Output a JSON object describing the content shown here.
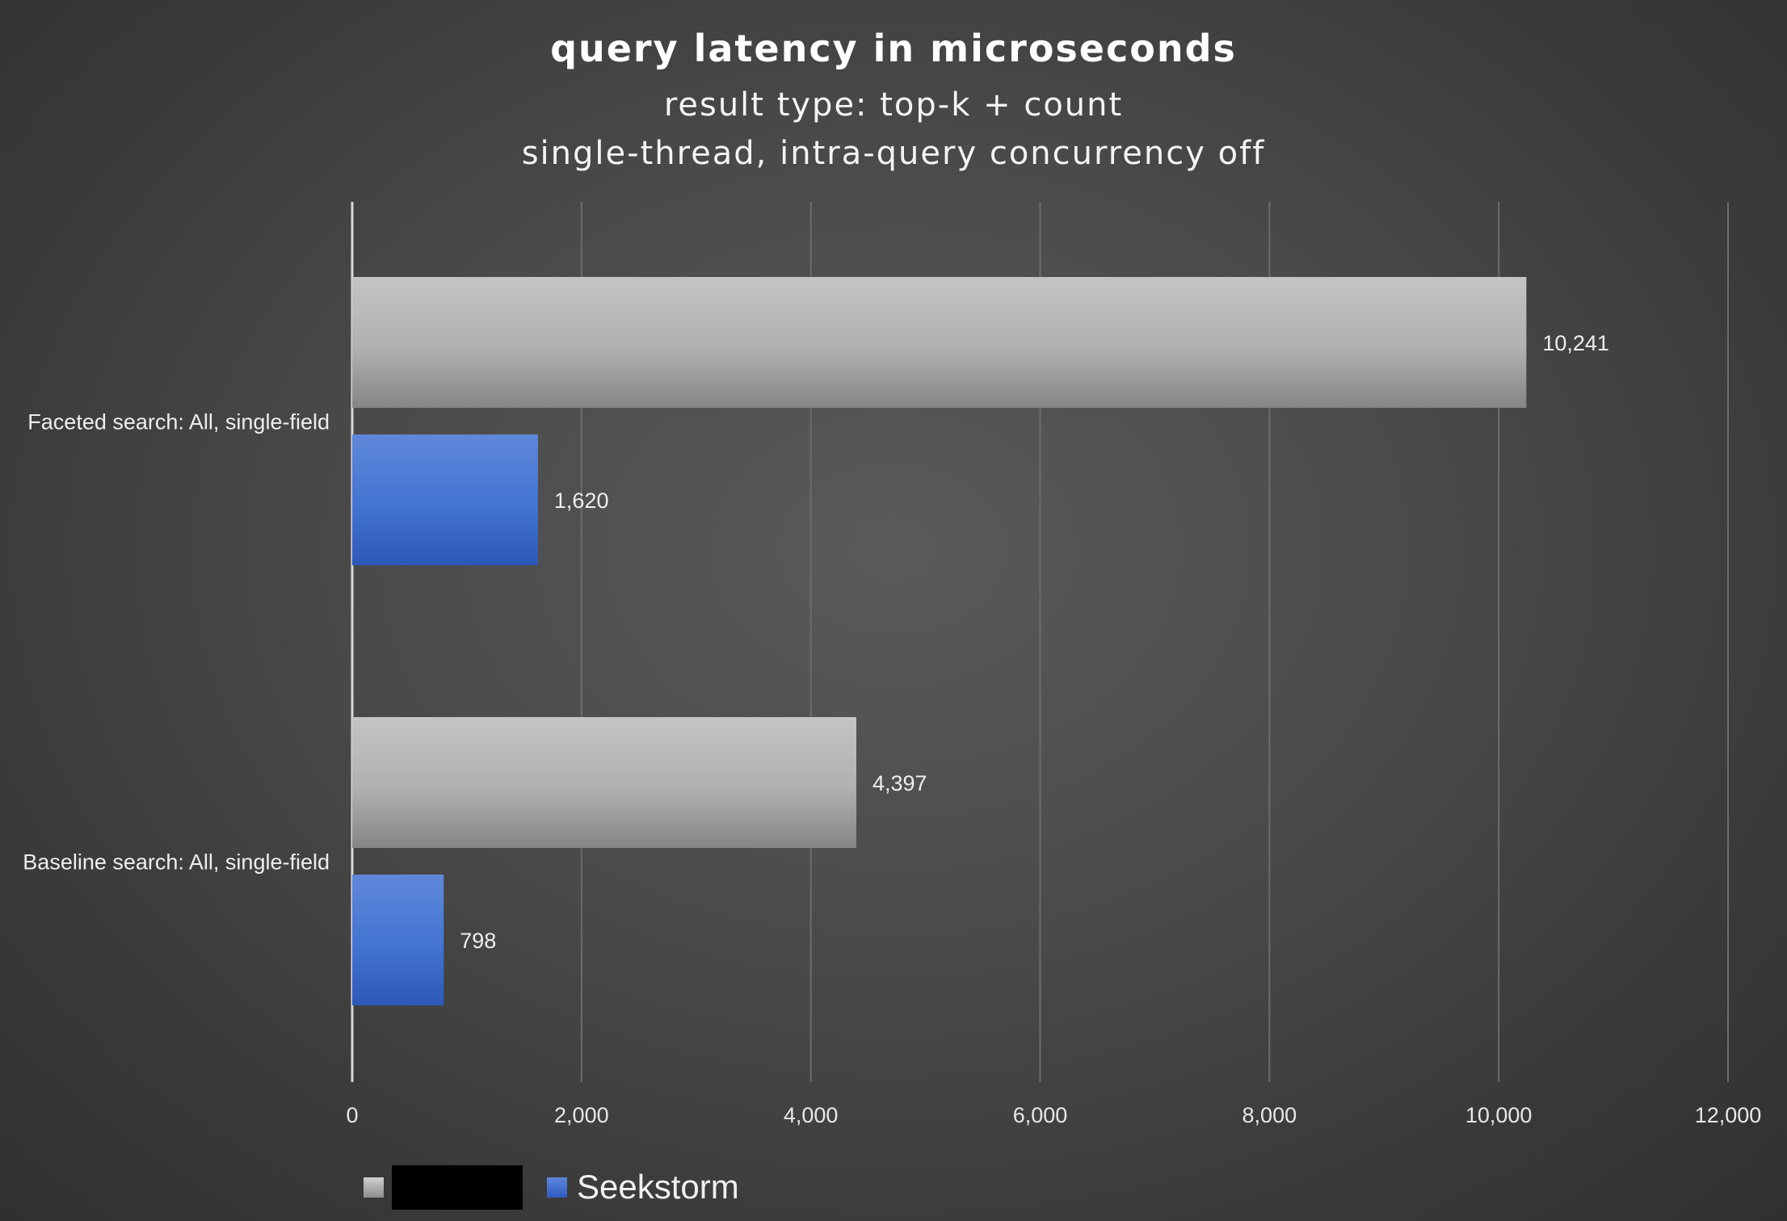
{
  "chart_data": {
    "type": "bar",
    "orientation": "horizontal",
    "title": "query latency in microseconds",
    "subtitle_lines": [
      "result type: top-k + count",
      "single-thread, intra-query concurrency off"
    ],
    "categories": [
      "Faceted search: All, single-field",
      "Baseline search: All, single-field"
    ],
    "series": [
      {
        "name": "",
        "color": "#b4b4b4",
        "values": [
          10241,
          4397
        ],
        "labels": [
          "10,241",
          "4,397"
        ],
        "redacted_legend": true
      },
      {
        "name": "Seekstorm",
        "color": "#3f6fd0",
        "values": [
          1620,
          798
        ],
        "labels": [
          "1,620",
          "798"
        ]
      }
    ],
    "xlim": [
      0,
      12000
    ],
    "xticks": [
      0,
      2000,
      4000,
      6000,
      8000,
      10000,
      12000
    ],
    "xtick_labels": [
      "0",
      "2,000",
      "4,000",
      "6,000",
      "8,000",
      "10,000",
      "12,000"
    ],
    "grid": "vertical",
    "legend_position": "bottom-left",
    "background": "dark-gray"
  }
}
